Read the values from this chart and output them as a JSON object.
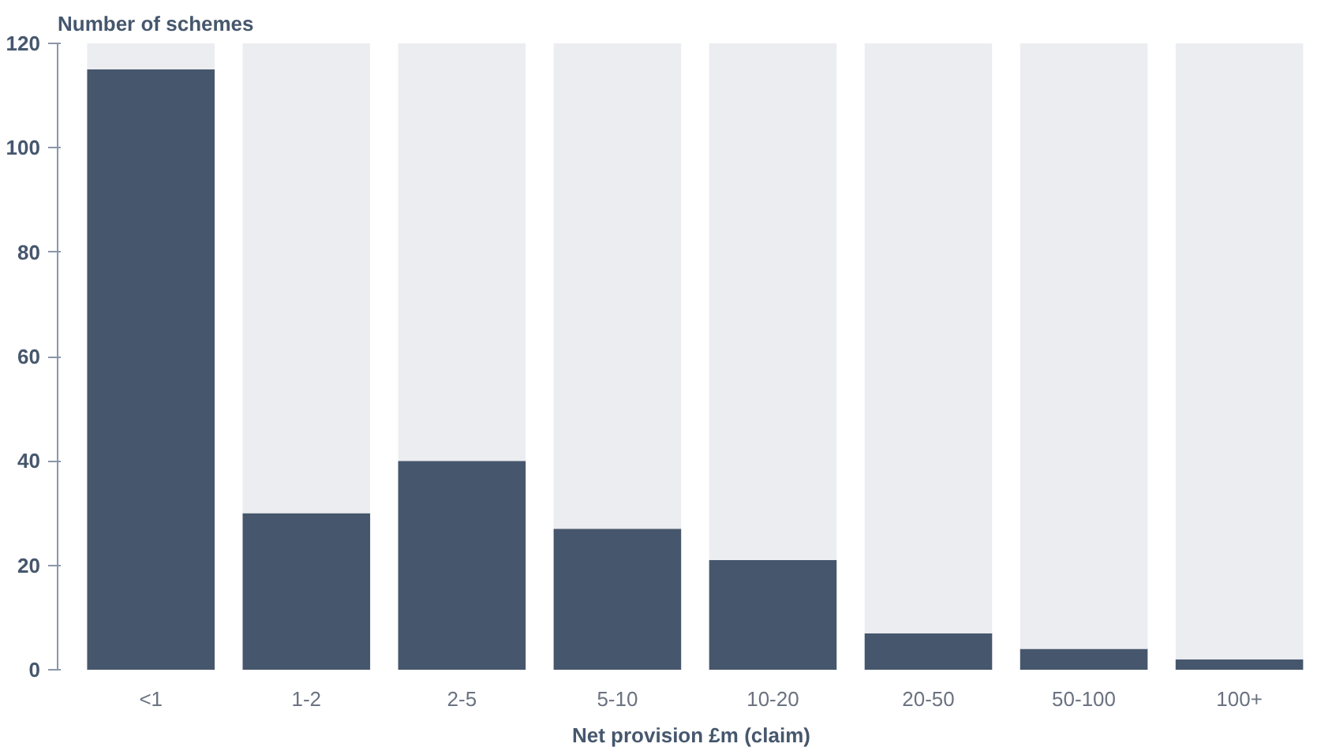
{
  "chart_data": {
    "type": "bar",
    "ylabel": "Number of schemes",
    "xlabel": "Net provision £m (claim)",
    "categories": [
      "<1",
      "1-2",
      "2-5",
      "5-10",
      "10-20",
      "20-50",
      "50-100",
      "100+"
    ],
    "series": [
      {
        "color": "#46576d",
        "values": [
          115,
          30,
          40,
          27,
          21,
          7,
          4,
          2
        ]
      },
      {
        "color": "#ecedf1",
        "values": [
          5,
          90,
          80,
          93,
          99,
          113,
          116,
          118
        ]
      }
    ],
    "stacked": true,
    "ylim": [
      0,
      120
    ],
    "yticks": [
      0,
      20,
      40,
      60,
      80,
      100,
      120
    ],
    "grid": false
  }
}
